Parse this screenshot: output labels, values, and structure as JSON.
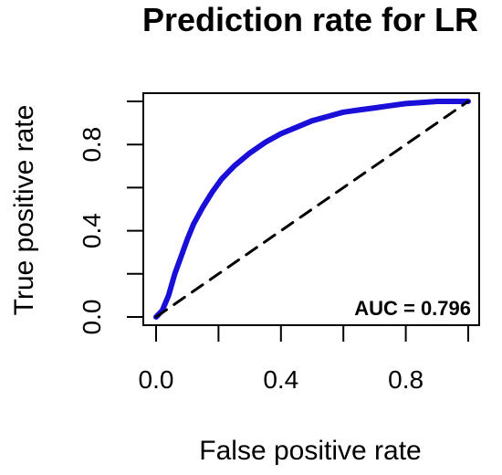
{
  "chart_data": {
    "type": "line",
    "title": "Prediction rate for LR",
    "xlabel": "False positive rate",
    "ylabel": "True positive rate",
    "xlim": [
      0,
      1
    ],
    "ylim": [
      0,
      1
    ],
    "x_ticks": [
      {
        "value": 0.0,
        "label": "0.0"
      },
      {
        "value": 0.2,
        "label": ""
      },
      {
        "value": 0.4,
        "label": "0.4"
      },
      {
        "value": 0.6,
        "label": ""
      },
      {
        "value": 0.8,
        "label": "0.8"
      },
      {
        "value": 1.0,
        "label": ""
      }
    ],
    "y_ticks": [
      {
        "value": 0.0,
        "label": "0.0"
      },
      {
        "value": 0.2,
        "label": ""
      },
      {
        "value": 0.4,
        "label": "0.4"
      },
      {
        "value": 0.6,
        "label": ""
      },
      {
        "value": 0.8,
        "label": "0.8"
      },
      {
        "value": 1.0,
        "label": ""
      }
    ],
    "grid": false,
    "series": [
      {
        "color": "#1a0fd9",
        "style": "solid",
        "points": [
          [
            0.0,
            0.0
          ],
          [
            0.02,
            0.03
          ],
          [
            0.04,
            0.1
          ],
          [
            0.06,
            0.2
          ],
          [
            0.08,
            0.28
          ],
          [
            0.1,
            0.36
          ],
          [
            0.12,
            0.43
          ],
          [
            0.15,
            0.51
          ],
          [
            0.18,
            0.58
          ],
          [
            0.21,
            0.64
          ],
          [
            0.25,
            0.7
          ],
          [
            0.3,
            0.76
          ],
          [
            0.35,
            0.81
          ],
          [
            0.4,
            0.85
          ],
          [
            0.45,
            0.88
          ],
          [
            0.5,
            0.91
          ],
          [
            0.55,
            0.93
          ],
          [
            0.6,
            0.95
          ],
          [
            0.65,
            0.96
          ],
          [
            0.7,
            0.97
          ],
          [
            0.75,
            0.98
          ],
          [
            0.8,
            0.99
          ],
          [
            0.85,
            0.995
          ],
          [
            0.9,
            1.0
          ],
          [
            0.95,
            1.0
          ],
          [
            1.0,
            1.0
          ]
        ]
      },
      {
        "color": "#000000",
        "style": "dashed",
        "points": [
          [
            0.0,
            0.0
          ],
          [
            1.0,
            1.0
          ]
        ]
      }
    ],
    "annotation": "AUC = 0.796"
  }
}
